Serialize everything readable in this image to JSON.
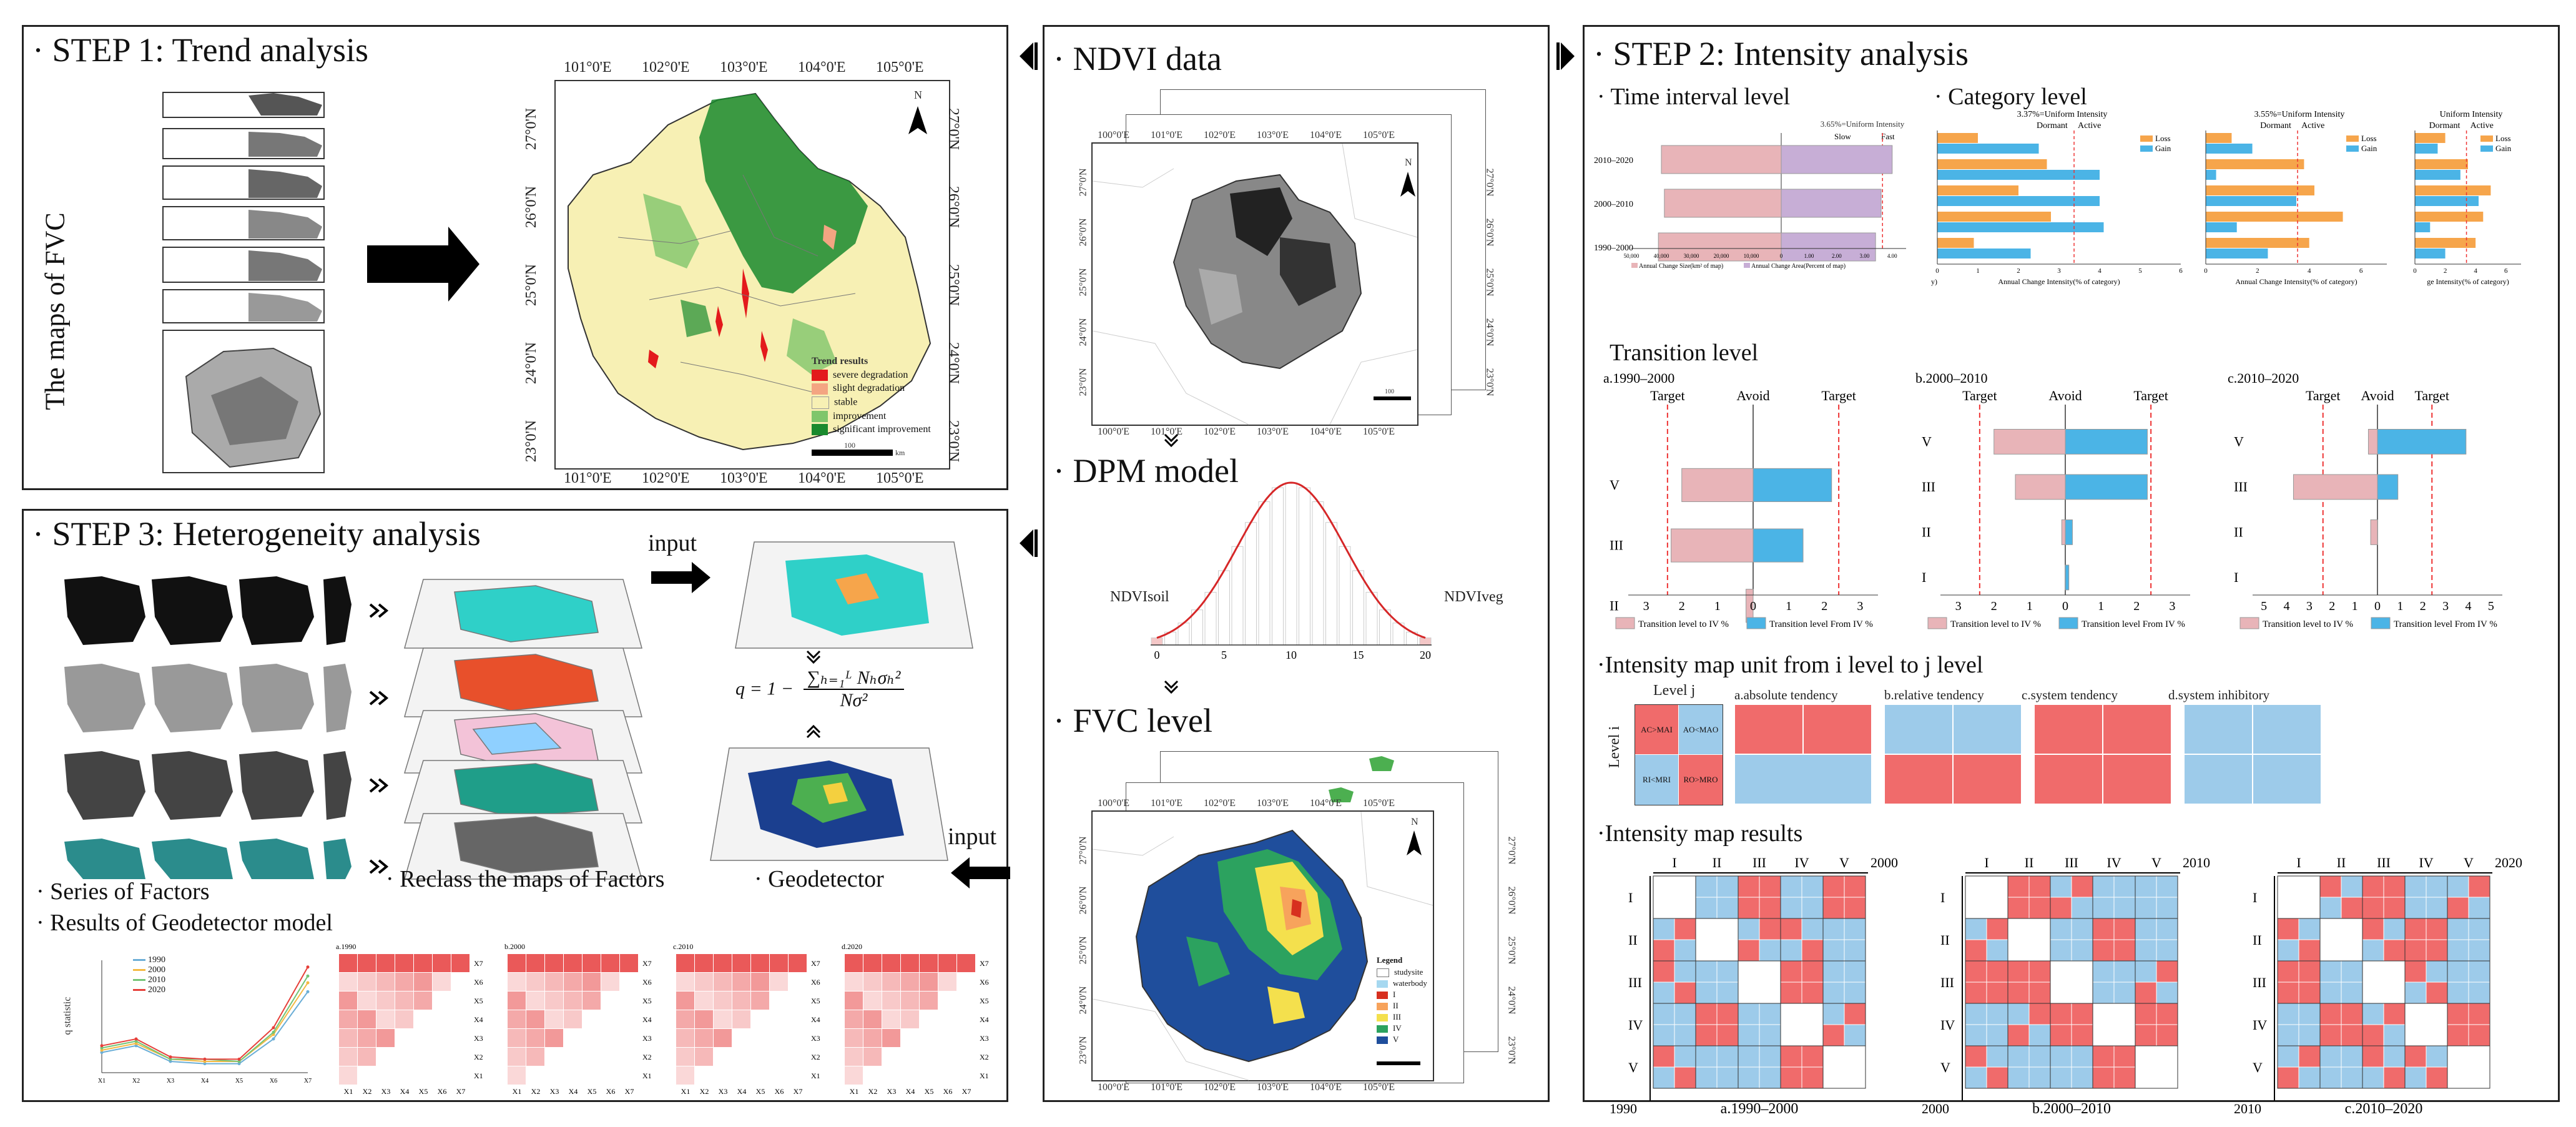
{
  "step1": {
    "title": "· STEP 1: Trend analysis",
    "fvc_label": "The maps of FVC",
    "map": {
      "top_ticks": [
        "101°0'E",
        "102°0'E",
        "103°0'E",
        "104°0'E",
        "105°0'E"
      ],
      "bottom_ticks": [
        "101°0'E",
        "102°0'E",
        "103°0'E",
        "104°0'E",
        "105°0'E"
      ],
      "lat_ticks": [
        "27°0'N",
        "26°0'N",
        "25°0'N",
        "24°0'N",
        "23°0'N"
      ],
      "north": "N",
      "scale": "100",
      "scale_unit": "km",
      "legend_title": "Trend  results",
      "legend": [
        {
          "label": "severe degradation",
          "color": "#e31a1c"
        },
        {
          "label": "slight degradation",
          "color": "#f4a582"
        },
        {
          "label": "stable",
          "color": "#f7f0b4"
        },
        {
          "label": "improvement",
          "color": "#7fc66b"
        },
        {
          "label": "significant improvement",
          "color": "#1a8a2e"
        }
      ]
    }
  },
  "ndvi": {
    "title": "· NDVI data",
    "ticks": [
      "100°0'E",
      "101°0'E",
      "102°0'E",
      "103°0'E",
      "104°0'E",
      "105°0'E"
    ],
    "lat_ticks": [
      "27°0'N",
      "26°0'N",
      "25°0'N",
      "24°0'N",
      "23°0'N"
    ],
    "north": "N",
    "scale": "100"
  },
  "dpm": {
    "title": "· DPM model",
    "left_label": "NDVIsoil",
    "right_label": "NDVIveg",
    "x_ticks": [
      "0",
      "5",
      "10",
      "15",
      "20"
    ]
  },
  "fvc": {
    "title": "· FVC level",
    "ticks": [
      "100°0'E",
      "101°0'E",
      "102°0'E",
      "103°0'E",
      "104°0'E",
      "105°0'E"
    ],
    "lat_ticks": [
      "27°0'N",
      "26°0'N",
      "25°0'N",
      "24°0'N",
      "23°0'N"
    ],
    "north": "N",
    "legend_title": "Legend",
    "legend": [
      {
        "label": "studysite",
        "color": "#ffffff"
      },
      {
        "label": "waterbody",
        "color": "#a6d8f0"
      },
      {
        "label": "I",
        "color": "#d7301f"
      },
      {
        "label": "II",
        "color": "#f7a35c"
      },
      {
        "label": "III",
        "color": "#f4e04d"
      },
      {
        "label": "IV",
        "color": "#2ca25f"
      },
      {
        "label": "V",
        "color": "#1f4e9c"
      }
    ]
  },
  "step2": {
    "title": "· STEP 2: Intensity analysis",
    "time_interval": {
      "title": "· Time interval level",
      "uniform": "3.65%=Uniform Intensity",
      "slow": "Slow",
      "fast": "Fast",
      "rows": [
        {
          "label": "2010–2020",
          "size": 40000,
          "rate": 4.0
        },
        {
          "label": "2000–2010",
          "size": 39000,
          "rate": 3.6
        },
        {
          "label": "1990–2000",
          "size": 41000,
          "rate": 3.4
        }
      ],
      "x_ticks": [
        "50,000",
        "40,000",
        "30,000",
        "20,000",
        "10,000",
        "0",
        "1.00",
        "2.00",
        "3.00",
        "4.00"
      ],
      "legend_a": "Annual Change Size(km² of map)",
      "legend_b": "Annual Change Area(Percent of map)"
    },
    "category": {
      "title": "· Category level",
      "uniform_1": "3.37%=Uniform Intensity",
      "uniform_2": "3.55%=Uniform Intensity",
      "uniform_3": "Uniform Intensity",
      "dormant": "Dormant",
      "active": "Active",
      "loss": "Loss",
      "gain": "Gain",
      "x_ticks_1": [
        "0",
        "1",
        "2",
        "3",
        "4",
        "5",
        "6"
      ],
      "x_ticks_2": [
        "0",
        "2",
        "4",
        "6"
      ],
      "x_ticks_3": [
        "0",
        "2",
        "4",
        "6"
      ],
      "xlabel_1": "Annual Change Intensity(% of category)",
      "xlabel_2": "Annual Change Intensity(% of category)",
      "xlabel_3": "ge Intensity(% of category)",
      "y_cut": "y)",
      "a_loss": [
        1.0,
        2.7,
        2.0,
        2.8,
        0.9
      ],
      "a_gain": [
        2.5,
        4.0,
        4.0,
        4.1,
        2.3
      ],
      "b_loss": [
        1.0,
        3.8,
        4.2,
        5.3,
        4.0
      ],
      "b_gain": [
        1.8,
        0.4,
        3.5,
        1.2,
        2.4
      ],
      "c_loss": [
        2.0,
        3.5,
        5.0,
        4.5,
        4.0
      ],
      "c_gain": [
        1.5,
        3.0,
        4.2,
        1.0,
        2.0
      ]
    },
    "transition": {
      "title": "Transition level",
      "charts": [
        {
          "title": "a.1990–2000",
          "rows": [
            "V",
            "III",
            "II"
          ],
          "left_vals": [
            2.0,
            2.3,
            0.2
          ],
          "right_vals": [
            2.2,
            1.4,
            0.0
          ]
        },
        {
          "title": "b.2000–2010",
          "rows": [
            "V",
            "III",
            "II",
            "I"
          ],
          "left_vals": [
            2.0,
            1.4,
            0.1,
            0.0
          ],
          "right_vals": [
            2.3,
            2.3,
            0.2,
            0.1
          ]
        },
        {
          "title": "c.2010–2020",
          "rows": [
            "V",
            "III",
            "II",
            "I"
          ],
          "left_vals": [
            0.4,
            3.7,
            0.3,
            0.0
          ],
          "right_vals": [
            3.9,
            0.9,
            0.0,
            0.0
          ]
        }
      ],
      "target": "Target",
      "avoid": "Avoid",
      "ticks_ab": [
        "3",
        "2",
        "1",
        "0",
        "1",
        "2",
        "3"
      ],
      "ticks_c": [
        "5",
        "4",
        "3",
        "2",
        "1",
        "0",
        "1",
        "2",
        "3",
        "4",
        "5"
      ],
      "legend_a": "Transition level to IV %",
      "legend_b": "Transition level From IV %"
    },
    "map_unit": {
      "title": "·Intensity map unit from i level to j level",
      "level_j": "Level j",
      "level_i": "Level i",
      "cells": [
        "AC>MAI",
        "AO<MAO",
        "RI<MRI",
        "RO>MRO"
      ],
      "labels": [
        "a.absolute tendency",
        "b.relative tendency",
        "c.system tendency",
        "d.system inhibitory"
      ]
    },
    "results": {
      "title": "·Intensity map results",
      "col_labels": [
        "I",
        "II",
        "III",
        "IV",
        "V"
      ],
      "row_labels": [
        "I",
        "II",
        "III",
        "IV",
        "V"
      ],
      "maps": [
        {
          "title": "a.1990–2000",
          "from": "1990",
          "to": "2000"
        },
        {
          "title": "b.2000–2010",
          "from": "2000",
          "to": "2010"
        },
        {
          "title": "c.2010–2020",
          "from": "2010",
          "to": "2020"
        }
      ]
    }
  },
  "step3": {
    "title": "· STEP 3: Heterogeneity analysis",
    "input": "input",
    "input2": "input",
    "series": "· Series of Factors",
    "reclass": "· Reclass the maps of Factors",
    "geodetector": "· Geodetector",
    "results": "· Results of  Geodetector model",
    "formula_q": "q = 1 −",
    "formula_num": "∑ₕ₌₁ᴸ Nₕσₕ²",
    "formula_den": "Nσ²",
    "line_chart": {
      "legend": [
        "1990",
        "2000",
        "2010",
        "2020"
      ],
      "colors": [
        "#6baed6",
        "#f4b942",
        "#74c476",
        "#e6403a"
      ],
      "ylabel": "q statistic",
      "categories": [
        "X1",
        "X2",
        "X3",
        "X4",
        "X5",
        "X6",
        "X7"
      ],
      "series": [
        {
          "name": "1990",
          "values": [
            0.09,
            0.12,
            0.05,
            0.04,
            0.04,
            0.15,
            0.36
          ]
        },
        {
          "name": "2000",
          "values": [
            0.1,
            0.13,
            0.06,
            0.05,
            0.05,
            0.17,
            0.4
          ]
        },
        {
          "name": "2010",
          "values": [
            0.11,
            0.14,
            0.06,
            0.06,
            0.05,
            0.18,
            0.43
          ]
        },
        {
          "name": "2020",
          "values": [
            0.12,
            0.15,
            0.07,
            0.06,
            0.06,
            0.2,
            0.47
          ]
        }
      ]
    },
    "heatmaps": [
      {
        "title": "a.1990",
        "axis": [
          "X1",
          "X2",
          "X3",
          "X4",
          "X5",
          "X6",
          "X7"
        ]
      },
      {
        "title": "b.2000",
        "axis": [
          "X1",
          "X2",
          "X3",
          "X4",
          "X5",
          "X6",
          "X7"
        ]
      },
      {
        "title": "c.2010",
        "axis": [
          "X1",
          "X2",
          "X3",
          "X4",
          "X5",
          "X6",
          "X7"
        ]
      },
      {
        "title": "d.2020",
        "axis": [
          "X1",
          "X2",
          "X3",
          "X4",
          "X5",
          "X6",
          "X7"
        ]
      }
    ]
  }
}
